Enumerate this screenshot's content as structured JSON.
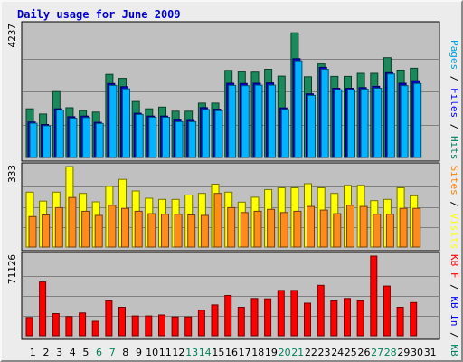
{
  "chart_data": {
    "title": "Daily usage for June 2009",
    "type": "bar",
    "days": [
      "1",
      "2",
      "3",
      "4",
      "5",
      "6",
      "7",
      "8",
      "9",
      "10",
      "11",
      "12",
      "13",
      "14",
      "15",
      "16",
      "17",
      "18",
      "19",
      "20",
      "21",
      "22",
      "23",
      "24",
      "25",
      "26",
      "27",
      "28",
      "29",
      "30",
      "31"
    ],
    "weekend_days": [
      "6",
      "7",
      "13",
      "14",
      "20",
      "21",
      "27",
      "28"
    ],
    "panels": [
      {
        "id": "hits-files-pages",
        "max_label": "4237",
        "ymax": 4237,
        "legend": [
          {
            "text": "Pages",
            "color": "#00a0e0"
          },
          {
            "text": " / ",
            "color": "#000000"
          },
          {
            "text": "Files",
            "color": "#0000ff"
          },
          {
            "text": " / ",
            "color": "#000000"
          },
          {
            "text": "Hits",
            "color": "#007f5f"
          }
        ],
        "series": [
          {
            "name": "Hits",
            "color": "#1a8a5c",
            "values": [
              1560,
              1395,
              2113,
              1597,
              1507,
              1456,
              2665,
              2536,
              1796,
              1560,
              1615,
              1487,
              1487,
              1743,
              1743,
              2792,
              2748,
              2738,
              2829,
              2609,
              3999,
              2590,
              3000,
              2600,
              2600,
              2700,
              2700,
              3200,
              2800,
              2860,
              0
            ]
          },
          {
            "name": "Files",
            "color": "#0000cc",
            "values": [
              1140,
              1060,
              1560,
              1310,
              1330,
              1130,
              2370,
              2270,
              1420,
              1330,
              1330,
              1200,
              1190,
              1600,
              1550,
              2380,
              2370,
              2380,
              2390,
              1590,
              3170,
              2040,
              2890,
              2220,
              2220,
              2240,
              2280,
              2720,
              2380,
              2460,
              0
            ]
          },
          {
            "name": "Pages",
            "color": "#00b4ff",
            "values": [
              1100,
              1020,
              1520,
              1260,
              1280,
              1090,
              2310,
              2200,
              1380,
              1290,
              1290,
              1150,
              1150,
              1540,
              1500,
              2310,
              2300,
              2320,
              2320,
              1540,
              3100,
              1990,
              2830,
              2170,
              2170,
              2190,
              2220,
              2680,
              2300,
              2370,
              0
            ]
          }
        ]
      },
      {
        "id": "visits-sites",
        "max_label": "333",
        "ymax": 333,
        "legend": [
          {
            "text": "Sites",
            "color": "#ff8000"
          },
          {
            "text": " / ",
            "color": "#000000"
          },
          {
            "text": "Visits",
            "color": "#ffff00"
          }
        ],
        "series": [
          {
            "name": "Visits",
            "color": "#ffff00",
            "values": [
              227,
              190,
              227,
              333,
              222,
              187,
              251,
              280,
              232,
              202,
              197,
              197,
              215,
              222,
              260,
              227,
              186,
              206,
              238,
              245,
              245,
              262,
              245,
              222,
              255,
              255,
              192,
              197,
              245,
              212,
              0
            ]
          },
          {
            "name": "Sites",
            "color": "#ff8c1a",
            "values": [
              126,
              133,
              163,
              205,
              148,
              131,
              173,
              160,
              148,
              138,
              136,
              136,
              133,
              131,
              222,
              163,
              143,
              148,
              156,
              143,
              148,
              168,
              153,
              138,
              173,
              168,
              136,
              136,
              160,
              160,
              0
            ]
          }
        ]
      },
      {
        "id": "kbytes",
        "max_label": "71126",
        "ymax": 71126,
        "legend": [
          {
            "text": "KB F",
            "color": "#ff0000"
          },
          {
            "text": " / ",
            "color": "#000000"
          },
          {
            "text": "KB In",
            "color": "#0000ff"
          },
          {
            "text": " / ",
            "color": "#000000"
          },
          {
            "text": "KB Out",
            "color": "#007f5f"
          }
        ],
        "series": [
          {
            "name": "KB F",
            "color": "#ff0000",
            "values": [
              16300,
              48000,
              19800,
              17100,
              20400,
              12900,
              31200,
              25500,
              17700,
              17700,
              18600,
              16800,
              16800,
              22800,
              27600,
              36000,
              25500,
              33300,
              33000,
              40500,
              40500,
              29100,
              45000,
              31200,
              33300,
              31200,
              71126,
              44400,
              25500,
              29700,
              0
            ]
          }
        ]
      }
    ]
  }
}
